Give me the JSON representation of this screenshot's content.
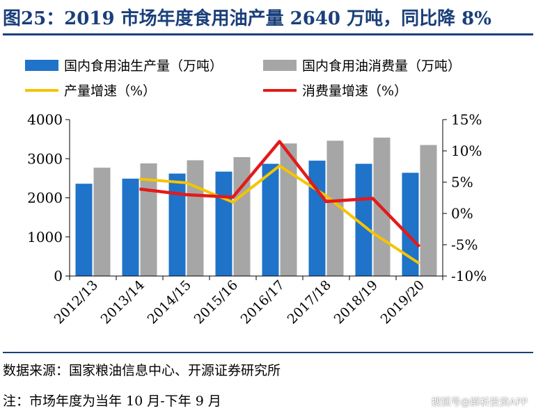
{
  "figure": {
    "title": "图25：2019 市场年度食用油产量 2640 万吨，同比降 8%",
    "source": "数据来源：国家粮油信息中心、开源证券研究所",
    "footnote": "注：市场年度为当年 10 月-下年 9 月",
    "watermark": "搜狐号@解析投资APP"
  },
  "colors": {
    "title": "#1a3f7a",
    "production": "#1f73c8",
    "consumption": "#a6a6a6",
    "production_growth": "#f5c400",
    "consumption_growth": "#e31a1a"
  },
  "chart_data": {
    "type": "bar",
    "categories": [
      "2012/13",
      "2013/14",
      "2014/15",
      "2015/16",
      "2016/17",
      "2017/18",
      "2018/19",
      "2019/20"
    ],
    "series": [
      {
        "name": "国内食用油生产量（万吨）",
        "type": "bar",
        "axis": "left",
        "values": [
          2360,
          2490,
          2620,
          2670,
          2870,
          2950,
          2870,
          2640
        ]
      },
      {
        "name": "国内食用油消费量（万吨）",
        "type": "bar",
        "axis": "left",
        "values": [
          2770,
          2880,
          2960,
          3040,
          3390,
          3460,
          3540,
          3350
        ]
      },
      {
        "name": "产量增速（%）",
        "type": "line",
        "axis": "right",
        "values": [
          null,
          5.5,
          4.9,
          1.8,
          7.6,
          2.8,
          -3.1,
          -8.0
        ]
      },
      {
        "name": "消费量增速（%）",
        "type": "line",
        "axis": "right",
        "values": [
          null,
          3.9,
          3.0,
          2.6,
          11.5,
          1.9,
          2.4,
          -5.3
        ]
      }
    ],
    "left_axis": {
      "ticks": [
        "4000",
        "3000",
        "2000",
        "1000",
        "0"
      ],
      "ylim": [
        0,
        4000
      ]
    },
    "right_axis": {
      "ticks": [
        "15%",
        "10%",
        "5%",
        "0%",
        "-5%",
        "-10%"
      ],
      "ylim": [
        -10,
        15
      ]
    },
    "legend_position": "top",
    "grid": false
  }
}
